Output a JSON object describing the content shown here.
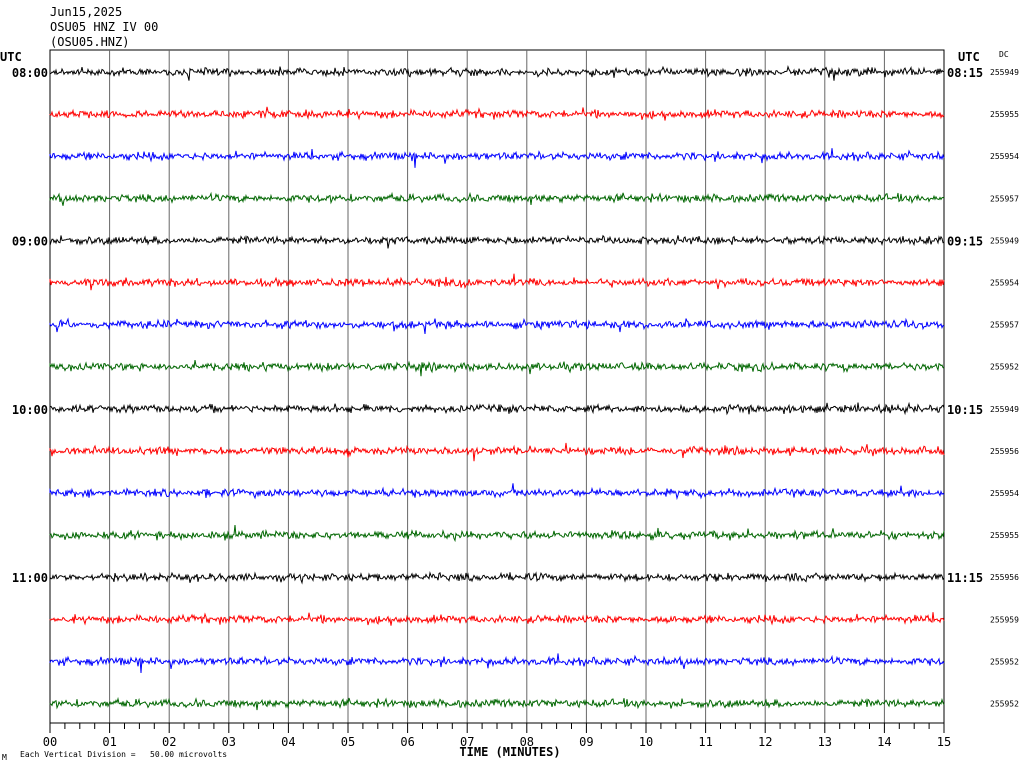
{
  "header": {
    "date": "Jun15,2025",
    "station": "OSU05 HNZ IV 00",
    "code": "(OSU05.HNZ)"
  },
  "left_tz": "UTC",
  "right_tz": "UTC",
  "dc_label": "DC",
  "footer": {
    "scale_note": "Each Vertical Division =   50.00 microvolts",
    "corner_mark": "M"
  },
  "chart_data": {
    "type": "line",
    "title": "",
    "xlabel": "TIME (MINUTES)",
    "ylabel": "",
    "x_ticks": [
      "00",
      "01",
      "02",
      "03",
      "04",
      "05",
      "06",
      "07",
      "08",
      "09",
      "10",
      "11",
      "12",
      "13",
      "14",
      "15"
    ],
    "xlim": [
      0,
      15
    ],
    "trace_colors": [
      "#000000",
      "#ff0000",
      "#0000ff",
      "#006600"
    ],
    "hour_blocks": [
      {
        "left": "08:00",
        "right": "08:15"
      },
      {
        "left": "09:00",
        "right": "09:15"
      },
      {
        "left": "10:00",
        "right": "10:15"
      },
      {
        "left": "11:00",
        "right": "11:15"
      }
    ],
    "traces": [
      {
        "dc": "255949",
        "color": "#000000"
      },
      {
        "dc": "255955",
        "color": "#ff0000"
      },
      {
        "dc": "255954",
        "color": "#0000ff"
      },
      {
        "dc": "255957",
        "color": "#006600"
      },
      {
        "dc": "255949",
        "color": "#000000"
      },
      {
        "dc": "255954",
        "color": "#ff0000"
      },
      {
        "dc": "255957",
        "color": "#0000ff"
      },
      {
        "dc": "255952",
        "color": "#006600"
      },
      {
        "dc": "255949",
        "color": "#000000"
      },
      {
        "dc": "255956",
        "color": "#ff0000"
      },
      {
        "dc": "255954",
        "color": "#0000ff"
      },
      {
        "dc": "255955",
        "color": "#006600"
      },
      {
        "dc": "255956",
        "color": "#000000"
      },
      {
        "dc": "255959",
        "color": "#ff0000"
      },
      {
        "dc": "255952",
        "color": "#0000ff"
      },
      {
        "dc": "255952",
        "color": "#006600"
      }
    ]
  }
}
